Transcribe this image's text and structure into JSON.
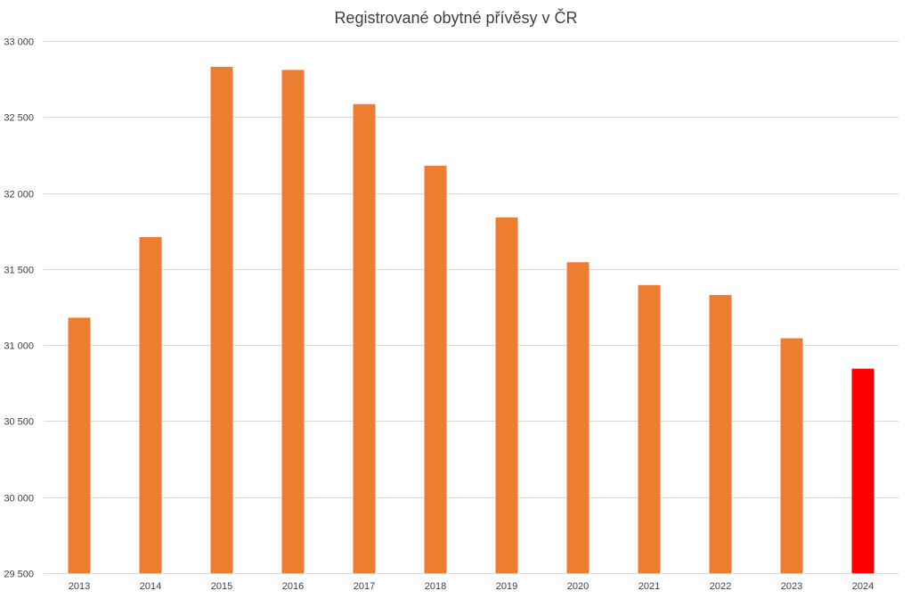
{
  "chart_data": {
    "type": "bar",
    "title": "Registrované obytné přívěsy v ČR",
    "xlabel": "",
    "ylabel": "",
    "categories": [
      "2013",
      "2014",
      "2015",
      "2016",
      "2017",
      "2018",
      "2019",
      "2020",
      "2021",
      "2022",
      "2023",
      "2024"
    ],
    "values": [
      31180,
      31710,
      32830,
      32810,
      32585,
      32180,
      31840,
      31545,
      31395,
      31330,
      31045,
      30845
    ],
    "bar_colors": [
      "#ED7D31",
      "#ED7D31",
      "#ED7D31",
      "#ED7D31",
      "#ED7D31",
      "#ED7D31",
      "#ED7D31",
      "#ED7D31",
      "#ED7D31",
      "#ED7D31",
      "#ED7D31",
      "#FF0000"
    ],
    "ylim": [
      29500,
      33000
    ],
    "y_ticks": [
      29500,
      30000,
      30500,
      31000,
      31500,
      32000,
      32500,
      33000
    ],
    "y_tick_labels": [
      "29 500",
      "30 000",
      "30 500",
      "31 000",
      "31 500",
      "32 000",
      "32 500",
      "33 000"
    ],
    "grid": true,
    "legend": "none"
  }
}
